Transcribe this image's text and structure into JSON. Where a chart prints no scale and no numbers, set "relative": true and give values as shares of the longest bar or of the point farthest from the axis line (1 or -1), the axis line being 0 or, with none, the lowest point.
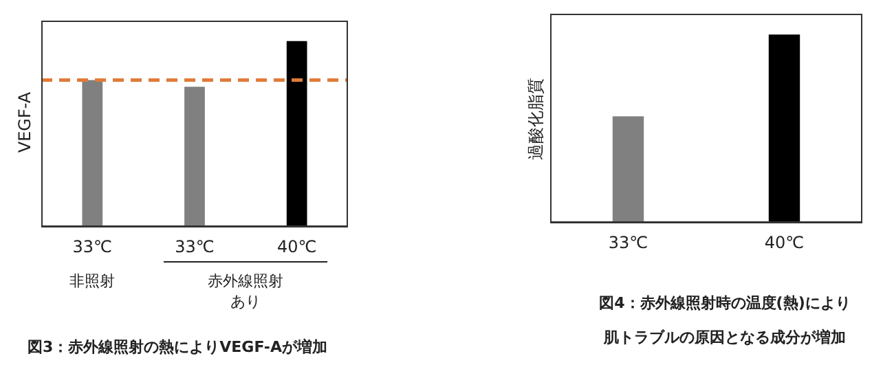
{
  "chart_data": [
    {
      "type": "bar",
      "title": "図3：赤外線照射の熱によりVEGF-Aが増加",
      "ylabel": "VEGF-A",
      "relative": true,
      "categories": [
        "33℃",
        "33℃",
        "40℃"
      ],
      "values": [
        0.79,
        0.754,
        1
      ],
      "colors": [
        "#808080",
        "#808080",
        "#000000"
      ],
      "ref_lines": [
        {
          "axis": "y",
          "value": 0.79,
          "color": "#e07b39",
          "line_style": "dashed"
        }
      ],
      "annotations": [
        "非照射",
        "赤外線照射あり"
      ]
    },
    {
      "type": "bar",
      "title": "図4：赤外線照射時の温度(熱)により肌トラブルの原因となる成分が増加",
      "ylabel": "過酸化脂質",
      "relative": true,
      "categories": [
        "33℃",
        "40℃"
      ],
      "values": [
        0.565,
        1
      ],
      "colors": [
        "#808080",
        "#000000"
      ]
    }
  ]
}
